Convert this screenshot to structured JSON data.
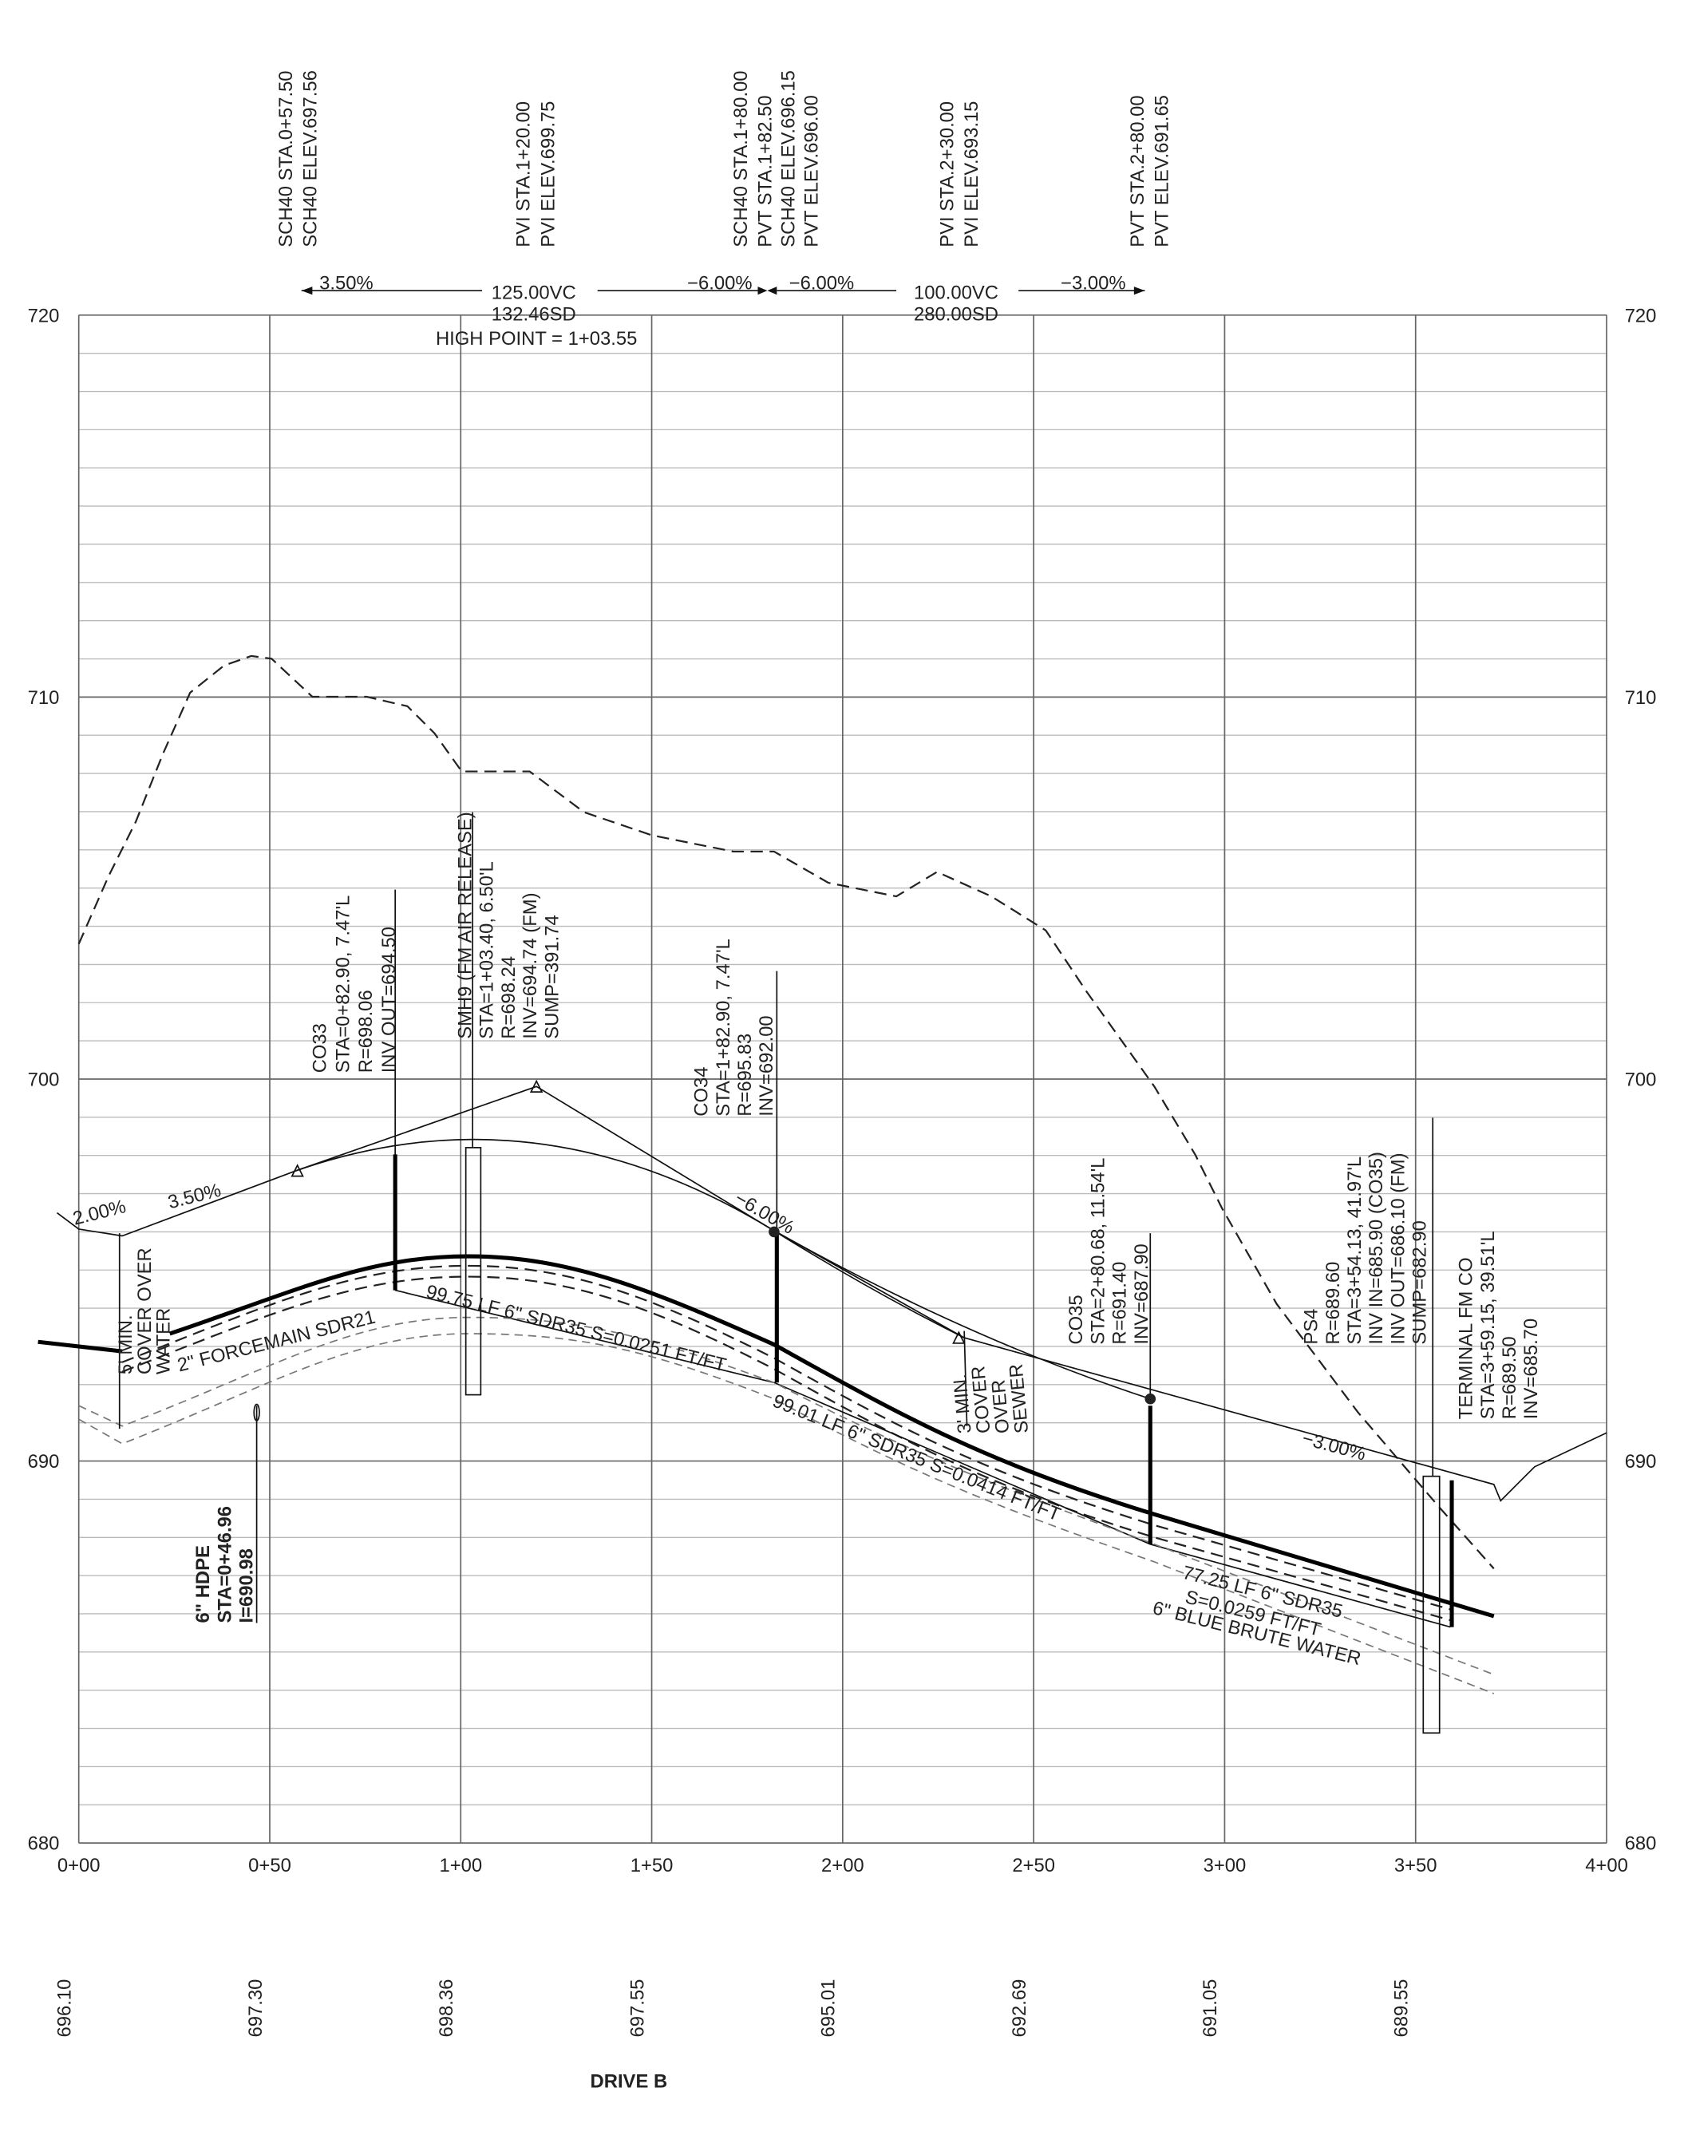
{
  "title": "DRIVE B",
  "elevation_labels_left": [
    "720",
    "710",
    "700",
    "690",
    "680"
  ],
  "elevation_labels_right": [
    "720",
    "710",
    "700",
    "690",
    "680"
  ],
  "stations": [
    "0+00",
    "0+50",
    "1+00",
    "1+50",
    "2+00",
    "2+50",
    "3+00",
    "3+50",
    "4+00"
  ],
  "ground_elevations": [
    "696.10",
    "697.30",
    "698.36",
    "697.55",
    "695.01",
    "692.69",
    "691.05",
    "689.55"
  ],
  "vertical_curve_labels": [
    "SCH40 STA.0+57.50",
    "SCH40 ELEV.697.56",
    "PVI STA.1+20.00",
    "PVI ELEV.699.75",
    "SCH40 STA.1+80.00",
    "PVT STA.1+82.50",
    "SCH40 ELEV.696.15",
    "PVT ELEV.696.00",
    "PVI STA.2+30.00",
    "PVI ELEV.693.15",
    "PVT STA.2+80.00",
    "PVT ELEV.691.65"
  ],
  "grade_labels": [
    "3.50%",
    "125.00VC",
    "132.46SD",
    "HIGH POINT = 1+03.55",
    "−6.00%",
    "−6.00%",
    "100.00VC",
    "280.00SD",
    "−3.00%"
  ],
  "callouts": [
    {
      "lines": [
        "CO33",
        "STA=0+82.90, 7.47'L",
        "R=698.06",
        "INV OUT=694.50"
      ]
    },
    {
      "lines": [
        "SMH9 (FM AIR RELEASE)",
        "STA=1+03.40, 6.50'L",
        "R=698.24",
        "INV=694.74 (FM)",
        "SUMP=391.74"
      ]
    },
    {
      "lines": [
        "CO34",
        "STA=1+82.90, 7.47'L",
        "R=695.83",
        "INV=692.00"
      ]
    },
    {
      "lines": [
        "CO35",
        "STA=2+80.68, 11.54'L",
        "R=691.40",
        "INV=687.90"
      ]
    },
    {
      "lines": [
        "PS4",
        "R=689.60",
        "STA=3+54.13, 41.97'L",
        "INV IN=685.90 (CO35)",
        "INV OUT=686.10 (FM)",
        "SUMP=682.90"
      ]
    },
    {
      "lines": [
        "TERMINAL FM CO",
        "STA=3+59.15, 39.51'L",
        "R=689.50",
        "INV=685.70"
      ]
    },
    {
      "lines": [
        "6\" HDPE",
        "STA=0+46.96",
        "I=690.98"
      ]
    },
    {
      "lines": [
        "5' MIN.",
        "COVER OVER",
        "WATER"
      ]
    },
    {
      "lines": [
        "3' MIN.",
        "COVER",
        "OVER",
        "SEWER"
      ]
    }
  ],
  "profile_labels": [
    "2.00%",
    "3.50%",
    "−6.00%",
    "−3.00%",
    "2\" FORCEMAIN SDR21",
    "99.75 LF 6\" SDR35 S=0.0251 FT/FT",
    "99.01 LF 6\" SDR35 S=0.0414 FT/FT",
    "77.25 LF 6\" SDR35",
    "S=0.0259 FT/FT",
    "6\" BLUE BRUTE WATER"
  ]
}
